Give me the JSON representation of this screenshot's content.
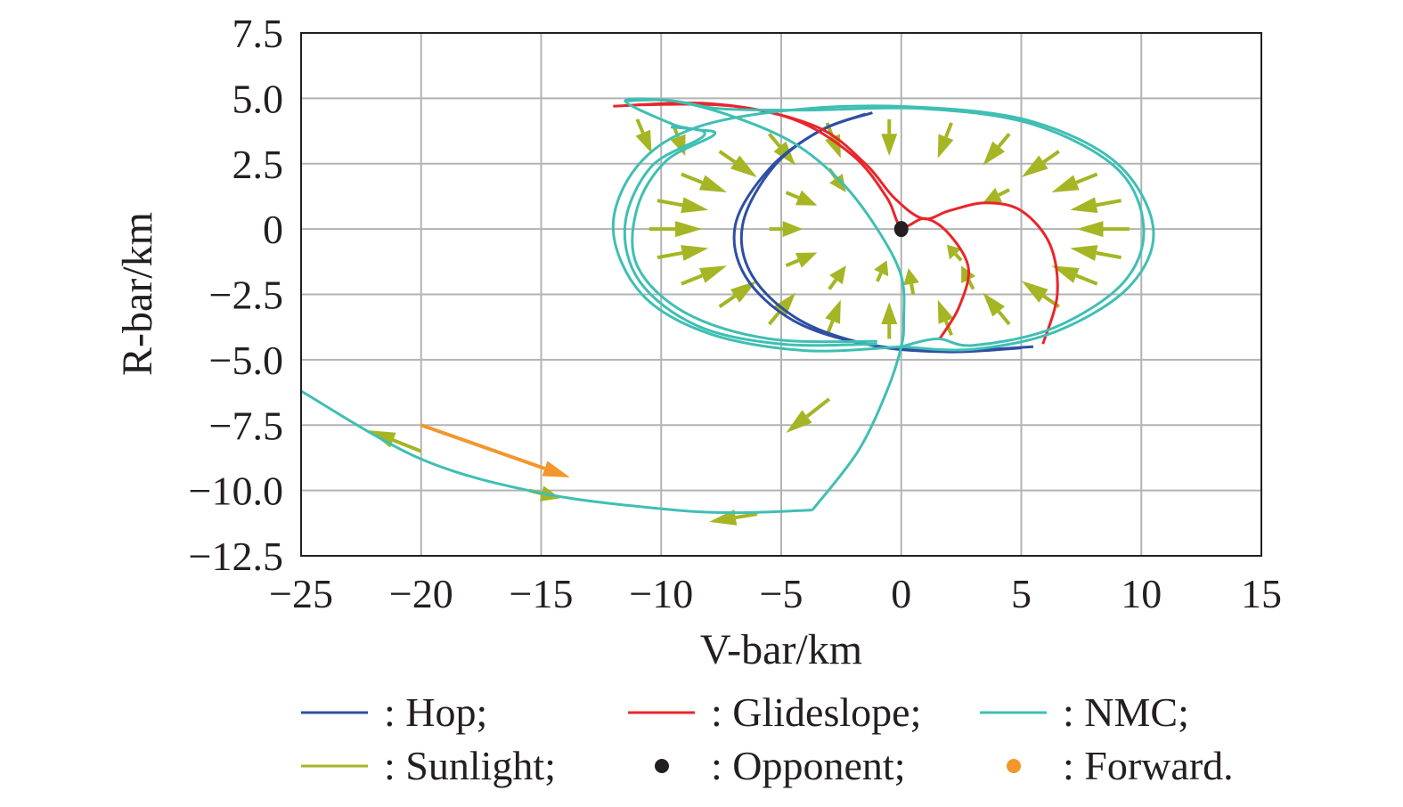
{
  "chart_data": {
    "type": "line",
    "xlabel": "V-bar/km",
    "ylabel": "R-bar/km",
    "xlim": [
      -25,
      15
    ],
    "ylim": [
      -12.5,
      7.5
    ],
    "xticks": [
      -25,
      -20,
      -15,
      -10,
      -5,
      0,
      5,
      10,
      15
    ],
    "xtick_labels": [
      "−25",
      "−20",
      "−15",
      "−10",
      "−5",
      "0",
      "5",
      "10",
      "15"
    ],
    "yticks": [
      7.5,
      5.0,
      2.5,
      0,
      -2.5,
      -5.0,
      -7.5,
      -10.0,
      -12.5
    ],
    "ytick_labels": [
      "7.5",
      "5.0",
      "2.5",
      "0",
      "−2.5",
      "−5.0",
      "−7.5",
      "−10.0",
      "−12.5"
    ],
    "grid": true,
    "colors": {
      "hop": "#2e4fa3",
      "glideslope": "#e8262b",
      "nmc": "#3fbfb3",
      "sunlight": "#a5b524",
      "opponent": "#231f20",
      "forward": "#f3962b"
    },
    "series": [
      {
        "name": "Hop",
        "color_key": "hop",
        "lines": [
          [
            [
              -1.5,
              4.4
            ],
            [
              -3.5,
              3.7
            ],
            [
              -5.5,
              2.3
            ],
            [
              -6.9,
              0.2
            ],
            [
              -6.5,
              -1.8
            ],
            [
              -4.5,
              -3.5
            ],
            [
              -1.5,
              -4.4
            ],
            [
              2,
              -4.65
            ],
            [
              5.5,
              -4.5
            ]
          ],
          [
            [
              -1.2,
              4.45
            ],
            [
              -3.3,
              3.8
            ],
            [
              -5.3,
              2.4
            ],
            [
              -6.6,
              0.2
            ],
            [
              -6.2,
              -1.8
            ],
            [
              -4.2,
              -3.5
            ],
            [
              -1.2,
              -4.45
            ],
            [
              2,
              -4.7
            ],
            [
              5,
              -4.55
            ]
          ]
        ]
      },
      {
        "name": "Glideslope",
        "color_key": "glideslope",
        "lines": [
          [
            [
              -12,
              4.7
            ],
            [
              -8,
              4.8
            ],
            [
              -4.5,
              4.2
            ],
            [
              -2,
              2.8
            ],
            [
              -0.6,
              1.2
            ],
            [
              0,
              0.1
            ],
            [
              1,
              0.4
            ],
            [
              2,
              -0.2
            ],
            [
              2.8,
              -1.5
            ],
            [
              2.4,
              -3
            ],
            [
              1.6,
              -4.2
            ]
          ],
          [
            [
              -11,
              4.75
            ],
            [
              -7,
              4.7
            ],
            [
              -3.5,
              3.9
            ],
            [
              -1.5,
              2.5
            ],
            [
              -0.3,
              1.2
            ],
            [
              0.9,
              0.4
            ],
            [
              2,
              0.7
            ],
            [
              3.5,
              1.0
            ],
            [
              5,
              0.7
            ],
            [
              6.2,
              -0.6
            ],
            [
              6.5,
              -2.5
            ],
            [
              5.9,
              -4.4
            ]
          ]
        ]
      },
      {
        "name": "NMC",
        "color_key": "nmc",
        "lines": [
          [
            [
              0,
              -4.5
            ],
            [
              -4,
              -4.65
            ],
            [
              -8,
              -4
            ],
            [
              -10.8,
              -2.5
            ],
            [
              -12,
              0
            ],
            [
              -11,
              2.4
            ],
            [
              -8.5,
              3.9
            ],
            [
              -4,
              4.6
            ],
            [
              1,
              4.65
            ],
            [
              5.5,
              4.1
            ],
            [
              9,
              2.5
            ],
            [
              10.5,
              0
            ],
            [
              9.5,
              -2.2
            ],
            [
              6.5,
              -3.9
            ],
            [
              3,
              -4.6
            ],
            [
              0,
              -4.5
            ]
          ],
          [
            [
              -1,
              -4.4
            ],
            [
              -5,
              -4.4
            ],
            [
              -8.5,
              -3.7
            ],
            [
              -10.9,
              -2
            ],
            [
              -11.5,
              0.2
            ],
            [
              -10.4,
              2.4
            ],
            [
              -8.2,
              3.6
            ],
            [
              -9.5,
              4.0
            ],
            [
              -11.5,
              4.9
            ],
            [
              -9.5,
              4.9
            ],
            [
              -7.5,
              4.6
            ],
            [
              -4,
              4.55
            ],
            [
              1,
              4.6
            ],
            [
              5.5,
              4.0
            ],
            [
              9,
              2.3
            ],
            [
              10.1,
              0
            ],
            [
              9.2,
              -2.1
            ],
            [
              6.3,
              -3.8
            ],
            [
              3,
              -4.45
            ],
            [
              1.5,
              -4.2
            ],
            [
              0,
              -4.5
            ]
          ],
          [
            [
              -1,
              -4.3
            ],
            [
              -5.5,
              -4.2
            ],
            [
              -9,
              -3.2
            ],
            [
              -11,
              -1.4
            ],
            [
              -11,
              0.8
            ],
            [
              -9.8,
              2.6
            ],
            [
              -7.8,
              3.6
            ],
            [
              -8.5,
              3.8
            ],
            [
              -9.6,
              3.9
            ]
          ],
          [
            [
              -11.5,
              4.9
            ],
            [
              -9.5,
              4.9
            ],
            [
              -7,
              4.3
            ],
            [
              -4.5,
              3.3
            ],
            [
              -2.5,
              1.8
            ],
            [
              -1,
              0
            ],
            [
              0,
              -1.8
            ],
            [
              0.1,
              -3.5
            ],
            [
              0,
              -4.5
            ],
            [
              -0.6,
              -6.2
            ],
            [
              -1.8,
              -8.5
            ],
            [
              -3.7,
              -10.75
            ]
          ],
          [
            [
              -3.7,
              -10.75
            ],
            [
              -7,
              -10.85
            ],
            [
              -10,
              -10.7
            ],
            [
              -15,
              -10.1
            ],
            [
              -20,
              -8.8
            ],
            [
              -25,
              -6.2
            ]
          ]
        ]
      }
    ],
    "sunlight_arrows": [
      [
        9.5,
        0,
        -2.2,
        0
      ],
      [
        9.16,
        1.09,
        -2.13,
        -0.36
      ],
      [
        8.16,
        2.1,
        -1.9,
        -0.7
      ],
      [
        6.57,
        2.97,
        -1.56,
        -0.99
      ],
      [
        4.5,
        3.64,
        -1.1,
        -1.21
      ],
      [
        2.09,
        4.06,
        -0.57,
        -1.35
      ],
      [
        -0.5,
        4.2,
        0,
        -1.4
      ],
      [
        -3.09,
        4.06,
        0.57,
        -1.35
      ],
      [
        -5.5,
        3.64,
        1.1,
        -1.21
      ],
      [
        -7.57,
        2.97,
        1.56,
        -0.99
      ],
      [
        -9.16,
        2.1,
        1.9,
        -0.7
      ],
      [
        -10.16,
        1.09,
        2.13,
        -0.36
      ],
      [
        -10.5,
        0,
        2.2,
        0
      ],
      [
        -10.16,
        -1.09,
        2.13,
        0.36
      ],
      [
        -9.16,
        -2.1,
        1.9,
        0.7
      ],
      [
        -7.57,
        -2.97,
        1.56,
        0.99
      ],
      [
        -5.5,
        -3.64,
        1.1,
        1.21
      ],
      [
        -3.09,
        -4.06,
        0.57,
        1.35
      ],
      [
        -0.5,
        -4.2,
        0,
        1.4
      ],
      [
        2.09,
        -4.06,
        -0.57,
        1.35
      ],
      [
        4.5,
        -3.64,
        -1.1,
        1.21
      ],
      [
        6.57,
        -2.97,
        -1.56,
        0.99
      ],
      [
        8.16,
        -2.1,
        -1.9,
        0.7
      ],
      [
        9.16,
        -1.09,
        -2.13,
        0.36
      ],
      [
        -5.5,
        0,
        1.4,
        0
      ],
      [
        -4.8,
        1.4,
        1.3,
        -0.5
      ],
      [
        -3,
        2.3,
        0.7,
        -0.9
      ],
      [
        -4.8,
        -1.4,
        1.3,
        0.5
      ],
      [
        -3,
        -2.3,
        0.7,
        0.9
      ],
      [
        0.5,
        -2.5,
        -0.2,
        1.0
      ],
      [
        3,
        -2.3,
        -0.5,
        0.9
      ],
      [
        4.5,
        1.5,
        -1.1,
        -0.5
      ],
      [
        2.5,
        -1.2,
        -0.6,
        0.6
      ],
      [
        -1,
        -2,
        0.4,
        0.8
      ],
      [
        -3,
        -6.5,
        -1.8,
        -1.3
      ],
      [
        -20,
        -8.5,
        -2.2,
        0.8
      ],
      [
        -15.5,
        -10,
        1.3,
        -0.3
      ],
      [
        -6,
        -10.9,
        -2,
        -0.3
      ],
      [
        -11,
        4.2,
        0.6,
        -1.3
      ],
      [
        -9.5,
        4,
        0.5,
        -1.2
      ]
    ],
    "opponent": [
      0,
      0
    ],
    "forward_arrow": [
      -20,
      -7.5,
      6.2,
      -2.0
    ],
    "legend": [
      {
        "label": ": Hop;",
        "type": "line",
        "color_key": "hop"
      },
      {
        "label": ": Glideslope;",
        "type": "line",
        "color_key": "glideslope"
      },
      {
        "label": ": NMC;",
        "type": "line",
        "color_key": "nmc"
      },
      {
        "label": ": Sunlight;",
        "type": "line",
        "color_key": "sunlight"
      },
      {
        "label": ": Opponent;",
        "type": "dot",
        "color_key": "opponent"
      },
      {
        "label": ": Forward.",
        "type": "dot",
        "color_key": "forward"
      }
    ],
    "legend_position": "bottom"
  }
}
